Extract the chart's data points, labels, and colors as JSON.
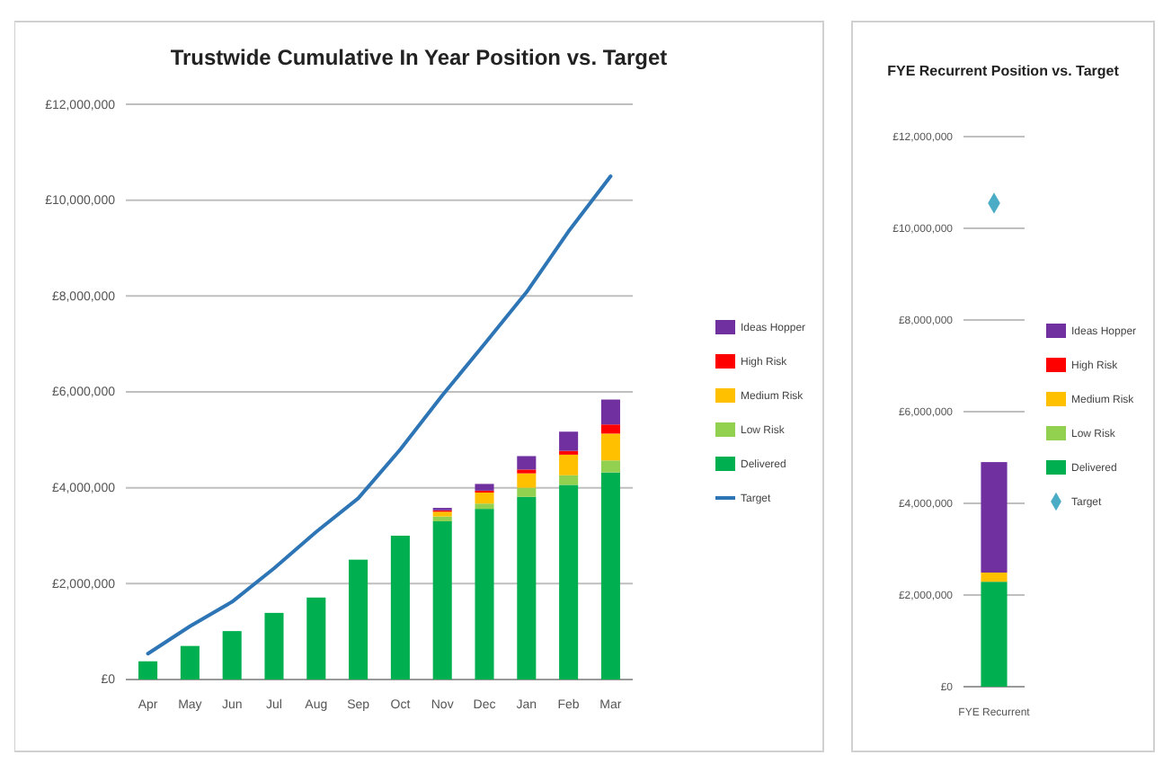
{
  "chart_data": [
    {
      "type": "bar",
      "title": "Trustwide Cumulative In Year Position vs. Target",
      "stacked": true,
      "grid": "y",
      "legend": "right",
      "categories": [
        "Apr",
        "May",
        "Jun",
        "Jul",
        "Aug",
        "Sep",
        "Oct",
        "Nov",
        "Dec",
        "Jan",
        "Feb",
        "Mar"
      ],
      "ylim": [
        0,
        12000000
      ],
      "yticks": [
        {
          "value": 0,
          "label": "£0"
        },
        {
          "value": 2000000,
          "label": "£2,000,000"
        },
        {
          "value": 4000000,
          "label": "£4,000,000"
        },
        {
          "value": 6000000,
          "label": "£6,000,000"
        },
        {
          "value": 8000000,
          "label": "£8,000,000"
        },
        {
          "value": 10000000,
          "label": "£10,000,000"
        },
        {
          "value": 12000000,
          "label": "£12,000,000"
        }
      ],
      "series": [
        {
          "name": "Delivered",
          "color": "#00b050",
          "values": [
            380000,
            700000,
            1010000,
            1390000,
            1710000,
            2500000,
            3000000,
            3300000,
            3560000,
            3810000,
            4060000,
            4320000
          ]
        },
        {
          "name": "Low Risk",
          "color": "#92d050",
          "values": [
            0,
            0,
            0,
            0,
            0,
            0,
            0,
            100000,
            110000,
            190000,
            200000,
            250000
          ]
        },
        {
          "name": "Medium Risk",
          "color": "#ffc000",
          "values": [
            0,
            0,
            0,
            0,
            0,
            0,
            0,
            100000,
            230000,
            300000,
            430000,
            560000
          ]
        },
        {
          "name": "High Risk",
          "color": "#ff0000",
          "values": [
            0,
            0,
            0,
            0,
            0,
            0,
            0,
            30000,
            40000,
            80000,
            80000,
            190000
          ]
        },
        {
          "name": "Ideas Hopper",
          "color": "#7030a0",
          "values": [
            0,
            0,
            0,
            0,
            0,
            0,
            0,
            50000,
            140000,
            280000,
            400000,
            520000
          ]
        },
        {
          "name": "Target",
          "type": "line",
          "color": "#2e75b6",
          "values": [
            540000,
            1110000,
            1620000,
            2320000,
            3080000,
            3780000,
            4800000,
            5930000,
            7000000,
            8080000,
            9350000,
            10500000
          ]
        }
      ]
    },
    {
      "type": "bar",
      "title": "FYE Recurrent Position vs. Target",
      "stacked": true,
      "grid": "y",
      "legend": "right",
      "categories": [
        "FYE Recurrent"
      ],
      "ylim": [
        0,
        12000000
      ],
      "yticks": [
        {
          "value": 0,
          "label": "£0"
        },
        {
          "value": 2000000,
          "label": "£2,000,000"
        },
        {
          "value": 4000000,
          "label": "£4,000,000"
        },
        {
          "value": 6000000,
          "label": "£6,000,000"
        },
        {
          "value": 8000000,
          "label": "£8,000,000"
        },
        {
          "value": 10000000,
          "label": "£10,000,000"
        },
        {
          "value": 12000000,
          "label": "£12,000,000"
        }
      ],
      "series": [
        {
          "name": "Delivered",
          "color": "#00b050",
          "values": [
            2290000
          ]
        },
        {
          "name": "Low Risk",
          "color": "#92d050",
          "values": [
            0
          ]
        },
        {
          "name": "Medium Risk",
          "color": "#ffc000",
          "values": [
            200000
          ]
        },
        {
          "name": "High Risk",
          "color": "#ff0000",
          "values": [
            0
          ]
        },
        {
          "name": "Ideas Hopper",
          "color": "#7030a0",
          "values": [
            2410000
          ]
        },
        {
          "name": "Target",
          "type": "scatter",
          "marker": "diamond",
          "color": "#4bacc6",
          "values": [
            10550000
          ]
        }
      ]
    }
  ]
}
